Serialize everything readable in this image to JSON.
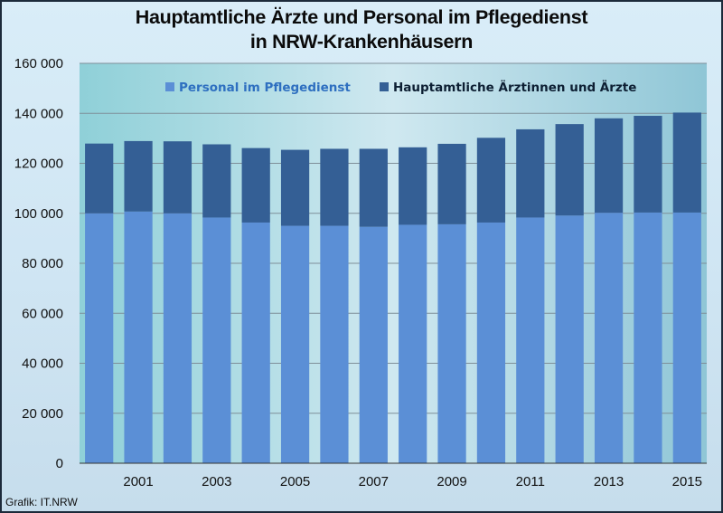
{
  "title": {
    "line1": "Hauptamtliche Ärzte und Personal im Pflegedienst",
    "line2": "in NRW-Krankenhäusern"
  },
  "source": "Grafik: IT.NRW",
  "colors": {
    "pflege": "#5b8fd6",
    "aerzte": "#345f95",
    "legend_pflege_text": "#2e6fc0",
    "legend_aerzte_text": "#0d1f33"
  },
  "chart_data": {
    "type": "bar",
    "stacked": true,
    "categories": [
      "2000",
      "2001",
      "2002",
      "2003",
      "2004",
      "2005",
      "2006",
      "2007",
      "2008",
      "2009",
      "2010",
      "2011",
      "2012",
      "2013",
      "2014",
      "2015"
    ],
    "x_tick_labels": [
      "",
      "2001",
      "",
      "2003",
      "",
      "2005",
      "",
      "2007",
      "",
      "2009",
      "",
      "2011",
      "",
      "2013",
      "",
      "2015"
    ],
    "series": [
      {
        "name": "Personal im Pflegedienst",
        "values": [
          100000,
          100700,
          100000,
          98300,
          96300,
          95000,
          95000,
          94600,
          95400,
          95600,
          96300,
          98300,
          99100,
          100200,
          100300,
          100300
        ]
      },
      {
        "name": "Hauptamtliche Ärztinnen und Ärzte",
        "values": [
          27900,
          28200,
          28800,
          29300,
          29800,
          30400,
          30800,
          31200,
          31000,
          32200,
          33900,
          35300,
          36600,
          37800,
          38700,
          40000
        ]
      }
    ],
    "y_ticks": [
      "0",
      "20 000",
      "40 000",
      "60 000",
      "80 000",
      "100 000",
      "120 000",
      "140 000",
      "160 000"
    ],
    "ylim": [
      0,
      160000
    ],
    "ystep": 20000,
    "grid": true,
    "legend_position": "top"
  }
}
